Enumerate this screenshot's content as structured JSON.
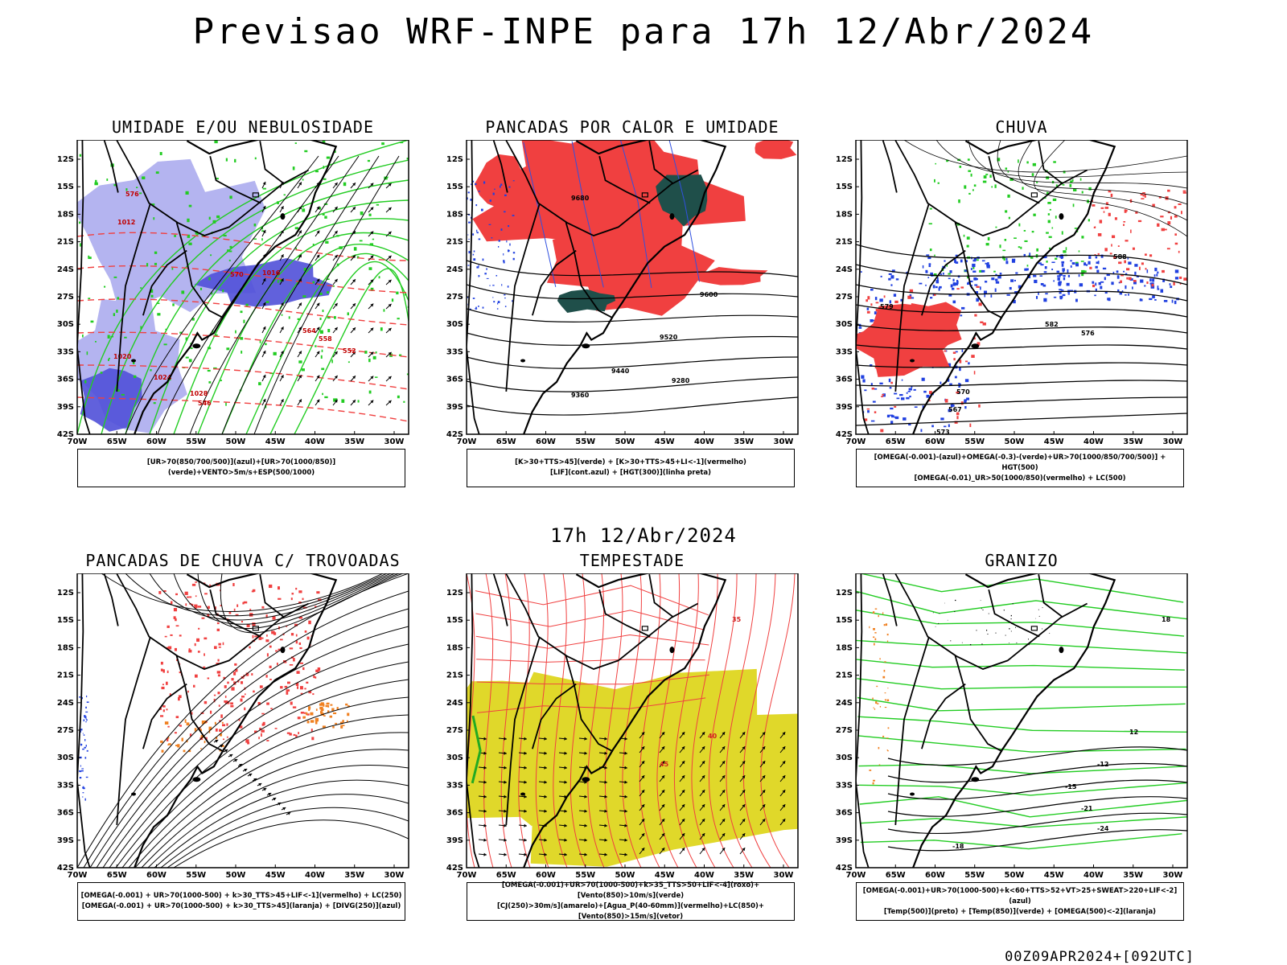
{
  "title": "Previsao WRF-INPE  para 17h 12/Abr/2024",
  "middle_title": "17h 12/Abr/2024",
  "footer": "00Z09APR2024+[092UTC]",
  "axes": {
    "lat_labels": [
      "12S",
      "15S",
      "18S",
      "21S",
      "24S",
      "27S",
      "30S",
      "33S",
      "36S",
      "39S",
      "42S"
    ],
    "lon_labels": [
      "70W",
      "65W",
      "60W",
      "55W",
      "50W",
      "45W",
      "40W",
      "35W",
      "30W"
    ]
  },
  "colors": {
    "humid_blue": "#b4b4f0",
    "humid_dark": "#5050d8",
    "green": "#22cc22",
    "red": "#f04040",
    "dark_green": "#1f4f4a",
    "yellow": "#e0d82a",
    "orange": "#f08020",
    "blue": "#2040e0"
  },
  "panels": [
    {
      "id": "umidade",
      "title": "UMIDADE E/OU NEBULOSIDADE",
      "caption": [
        "[UR>70(850/700/500)](azul)+[UR>70(1000/850)](verde)+VENTO>5m/s+ESP(500/1000)"
      ],
      "contour_labels": [
        "1012",
        "1016",
        "1020",
        "1024",
        "1028",
        "576",
        "570",
        "564",
        "558",
        "552",
        "546"
      ]
    },
    {
      "id": "pancadas-calor",
      "title": "PANCADAS POR CALOR E UMIDADE",
      "caption": [
        "[K>30+TTS>45](verde) + [K>30+TTS>45+LI<-1](vermelho)",
        "[LIF](cont.azul) + [HGT(300)](linha preta)"
      ],
      "contour_labels": [
        "9680",
        "9600",
        "9520",
        "9440",
        "9360",
        "9280"
      ]
    },
    {
      "id": "chuva",
      "title": "CHUVA",
      "caption": [
        "[OMEGA(-0.001)-(azul)+OMEGA(-0.3)-(verde)+UR>70(1000/850/700/500)] + HGT(500)",
        "[OMEGA(-0.01)_UR>50(1000/850)(vermelho) + LC(500)"
      ],
      "contour_labels": [
        "588",
        "582",
        "576",
        "570",
        "567",
        "573",
        "579"
      ]
    },
    {
      "id": "pancadas-trovoadas",
      "title": "PANCADAS DE CHUVA C/ TROVOADAS",
      "caption": [
        "[OMEGA(-0.001) + UR>70(1000-500) + k>30_TTS>45+LIF<-1](vermelho) + LC(250)",
        "[OMEGA(-0.001) + UR>70(1000-500) + k>30_TTS>45](laranja) + [DIVG(250)](azul)"
      ],
      "contour_labels": []
    },
    {
      "id": "tempestade",
      "title": "TEMPESTADE",
      "caption": [
        "[OMEGA(-0.001)+UR>70(1000-500)+k>35_TTS>50+LIF<-4](roxo)+[Vento(850)>10m/s](verde)",
        "[CJ(250)>30m/s](amarelo)+[Agua_P(40-60mm)](vermelho)+LC(850)+[Vento(850)>15m/s](vetor)"
      ],
      "contour_labels": [
        "40",
        "45",
        "35"
      ]
    },
    {
      "id": "granizo",
      "title": "GRANIZO",
      "caption": [
        "[OMEGA(-0.001)+UR>70(1000-500)+k<60+TTS>52+VT>25+SWEAT>220+LIF<-2](azul)",
        "[Temp(500)](preto) + [Temp(850)](verde) + [OMEGA(500)<-2](laranja)"
      ],
      "contour_labels": [
        "-12",
        "-15",
        "-18",
        "-21",
        "-24",
        "12",
        "18"
      ]
    }
  ]
}
